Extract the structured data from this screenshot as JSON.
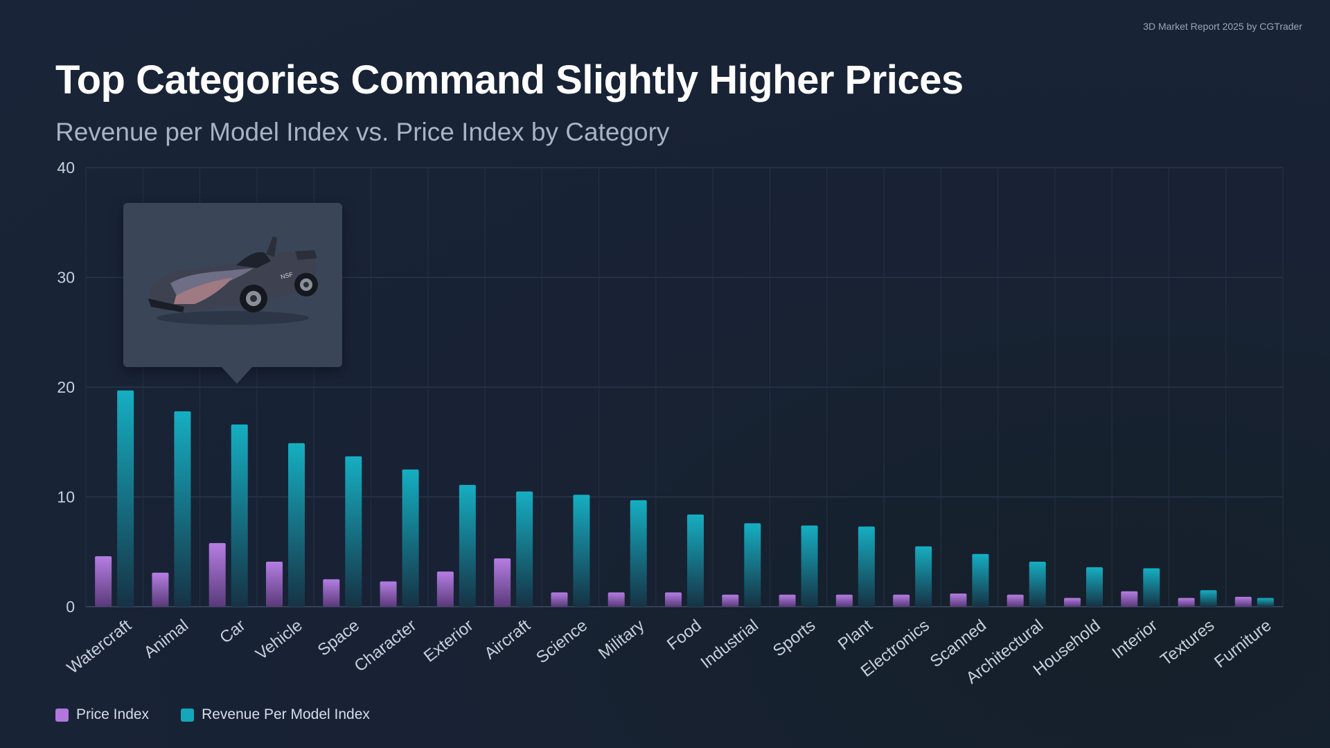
{
  "header": {
    "credit": "3D Market Report 2025 by CGTrader",
    "title": "Top Categories Command Slightly Higher Prices",
    "subtitle": "Revenue per Model Index vs. Price Index by Category"
  },
  "colors": {
    "price": "#b077dd",
    "revenue": "#14a7bb",
    "grid": "#2c3a4e",
    "tick": "#c8d0dc"
  },
  "tooltip": {
    "icon": "race-car-3d-render-icon",
    "car_lettering": "NSF"
  },
  "legend": {
    "price_label": "Price Index",
    "revenue_label": "Revenue Per Model Index"
  },
  "chart_data": {
    "type": "bar",
    "title": "Top Categories Command Slightly Higher Prices",
    "subtitle": "Revenue per Model Index vs. Price Index by Category",
    "xlabel": "",
    "ylabel": "",
    "ylim": [
      0,
      40
    ],
    "yticks": [
      0,
      10,
      20,
      30,
      40
    ],
    "grid": true,
    "legend_position": "bottom-left",
    "categories": [
      "Watercraft",
      "Animal",
      "Car",
      "Vehicle",
      "Space",
      "Character",
      "Exterior",
      "Aircraft",
      "Science",
      "Military",
      "Food",
      "Industrial",
      "Sports",
      "Plant",
      "Electronics",
      "Scanned",
      "Architectural",
      "Household",
      "Interior",
      "Textures",
      "Furniture"
    ],
    "series": [
      {
        "name": "Price Index",
        "values": [
          4.6,
          3.1,
          5.8,
          4.1,
          2.5,
          2.3,
          3.2,
          4.4,
          1.3,
          1.3,
          1.3,
          1.1,
          1.1,
          1.1,
          1.1,
          1.2,
          1.1,
          0.8,
          1.4,
          0.8,
          0.9
        ]
      },
      {
        "name": "Revenue Per Model Index",
        "values": [
          19.7,
          17.8,
          16.6,
          14.9,
          13.7,
          12.5,
          11.1,
          10.5,
          10.2,
          9.7,
          8.4,
          7.6,
          7.4,
          7.3,
          5.5,
          4.8,
          4.1,
          3.6,
          3.5,
          1.5,
          0.8
        ]
      }
    ]
  }
}
